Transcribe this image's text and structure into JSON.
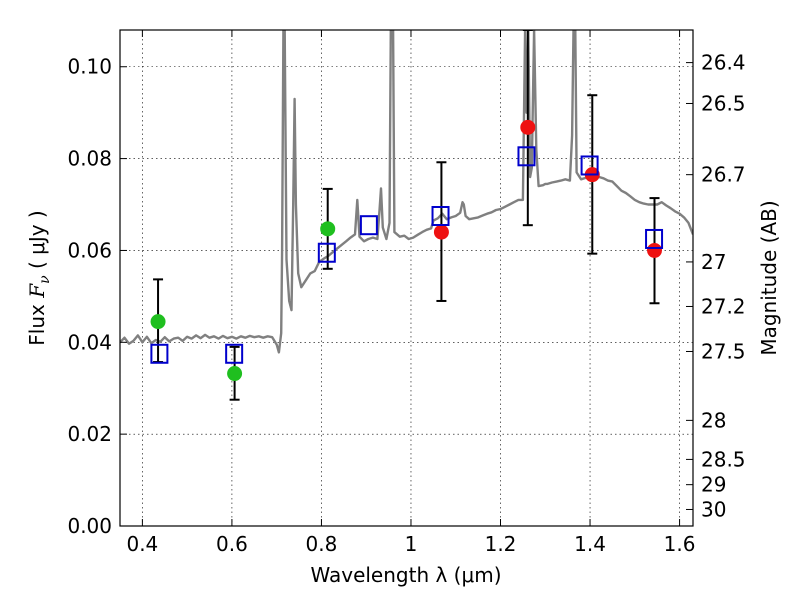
{
  "chart_data": {
    "type": "scatter",
    "xlabel": "Wavelength  λ (μm)",
    "ylabel_prefix": "Flux  ",
    "ylabel_symbol": "F",
    "ylabel_symbol_sub": "ν",
    "ylabel_suffix": "  ( μJy )",
    "y2label": "Magnitude (AB)",
    "xlim": [
      0.35,
      1.63
    ],
    "ylim": [
      0.0,
      0.108
    ],
    "grid": true,
    "x_ticks": [
      {
        "value": 0.4,
        "label": "0.4"
      },
      {
        "value": 0.6,
        "label": "0.6"
      },
      {
        "value": 0.8,
        "label": "0.8"
      },
      {
        "value": 1.0,
        "label": "1"
      },
      {
        "value": 1.2,
        "label": "1.2"
      },
      {
        "value": 1.4,
        "label": "1.4"
      },
      {
        "value": 1.6,
        "label": "1.6"
      }
    ],
    "y_ticks": [
      {
        "value": 0.0,
        "label": "0.00"
      },
      {
        "value": 0.02,
        "label": "0.02"
      },
      {
        "value": 0.04,
        "label": "0.04"
      },
      {
        "value": 0.06,
        "label": "0.06"
      },
      {
        "value": 0.08,
        "label": "0.08"
      },
      {
        "value": 0.1,
        "label": "0.10"
      }
    ],
    "mag_ticks": [
      {
        "flux": 0.1009,
        "label": "26.4"
      },
      {
        "flux": 0.092,
        "label": "26.5"
      },
      {
        "flux": 0.0765,
        "label": "26.7"
      },
      {
        "flux": 0.0575,
        "label": "27"
      },
      {
        "flux": 0.0478,
        "label": "27.2"
      },
      {
        "flux": 0.038,
        "label": "27.5"
      },
      {
        "flux": 0.023,
        "label": "28"
      },
      {
        "flux": 0.0145,
        "label": "28.5"
      },
      {
        "flux": 0.009,
        "label": "29"
      },
      {
        "flux": 0.0036,
        "label": "30"
      }
    ],
    "colors": {
      "spectrum": "#808080",
      "green_points": "#1fbf1f",
      "red_points": "#ee1111",
      "model_boxes": "#0000cc",
      "errorbars": "#000000"
    },
    "spectrum": [
      [
        0.35,
        0.04
      ],
      [
        0.36,
        0.041
      ],
      [
        0.37,
        0.0397
      ],
      [
        0.38,
        0.0403
      ],
      [
        0.39,
        0.0415
      ],
      [
        0.4,
        0.04
      ],
      [
        0.41,
        0.0412
      ],
      [
        0.42,
        0.0398
      ],
      [
        0.43,
        0.0405
      ],
      [
        0.44,
        0.0401
      ],
      [
        0.45,
        0.0411
      ],
      [
        0.46,
        0.0402
      ],
      [
        0.47,
        0.0408
      ],
      [
        0.48,
        0.041
      ],
      [
        0.49,
        0.0403
      ],
      [
        0.5,
        0.0412
      ],
      [
        0.51,
        0.0408
      ],
      [
        0.52,
        0.0415
      ],
      [
        0.53,
        0.0409
      ],
      [
        0.54,
        0.0416
      ],
      [
        0.55,
        0.041
      ],
      [
        0.56,
        0.0413
      ],
      [
        0.57,
        0.0408
      ],
      [
        0.58,
        0.0414
      ],
      [
        0.59,
        0.0409
      ],
      [
        0.6,
        0.0412
      ],
      [
        0.61,
        0.0408
      ],
      [
        0.62,
        0.0413
      ],
      [
        0.63,
        0.041
      ],
      [
        0.64,
        0.0414
      ],
      [
        0.65,
        0.0411
      ],
      [
        0.66,
        0.0413
      ],
      [
        0.67,
        0.041
      ],
      [
        0.68,
        0.0413
      ],
      [
        0.69,
        0.0411
      ],
      [
        0.7,
        0.0395
      ],
      [
        0.705,
        0.0378
      ],
      [
        0.71,
        0.042
      ],
      [
        0.712,
        0.06
      ],
      [
        0.715,
        0.108
      ],
      [
        0.718,
        0.108
      ],
      [
        0.722,
        0.058
      ],
      [
        0.728,
        0.049
      ],
      [
        0.733,
        0.047
      ],
      [
        0.737,
        0.07
      ],
      [
        0.74,
        0.093
      ],
      [
        0.743,
        0.07
      ],
      [
        0.748,
        0.055
      ],
      [
        0.755,
        0.052
      ],
      [
        0.765,
        0.0535
      ],
      [
        0.775,
        0.055
      ],
      [
        0.785,
        0.0555
      ],
      [
        0.795,
        0.0575
      ],
      [
        0.805,
        0.0582
      ],
      [
        0.815,
        0.0588
      ],
      [
        0.825,
        0.0596
      ],
      [
        0.835,
        0.0604
      ],
      [
        0.845,
        0.0612
      ],
      [
        0.855,
        0.062
      ],
      [
        0.865,
        0.0628
      ],
      [
        0.875,
        0.0635
      ],
      [
        0.88,
        0.071
      ],
      [
        0.885,
        0.063
      ],
      [
        0.895,
        0.062
      ],
      [
        0.905,
        0.0625
      ],
      [
        0.915,
        0.0628
      ],
      [
        0.925,
        0.0625
      ],
      [
        0.93,
        0.069
      ],
      [
        0.933,
        0.0735
      ],
      [
        0.937,
        0.065
      ],
      [
        0.945,
        0.0625
      ],
      [
        0.952,
        0.066
      ],
      [
        0.955,
        0.108
      ],
      [
        0.96,
        0.108
      ],
      [
        0.963,
        0.064
      ],
      [
        0.975,
        0.063
      ],
      [
        0.985,
        0.0632
      ],
      [
        0.995,
        0.0625
      ],
      [
        1.005,
        0.0628
      ],
      [
        1.015,
        0.0634
      ],
      [
        1.025,
        0.064
      ],
      [
        1.035,
        0.0645
      ],
      [
        1.045,
        0.0648
      ],
      [
        1.05,
        0.0665
      ],
      [
        1.06,
        0.067
      ],
      [
        1.07,
        0.068
      ],
      [
        1.08,
        0.0668
      ],
      [
        1.09,
        0.0672
      ],
      [
        1.1,
        0.0675
      ],
      [
        1.11,
        0.0682
      ],
      [
        1.115,
        0.0705
      ],
      [
        1.118,
        0.07
      ],
      [
        1.122,
        0.0675
      ],
      [
        1.13,
        0.0668
      ],
      [
        1.14,
        0.067
      ],
      [
        1.15,
        0.0672
      ],
      [
        1.16,
        0.0676
      ],
      [
        1.17,
        0.068
      ],
      [
        1.18,
        0.0683
      ],
      [
        1.19,
        0.0688
      ],
      [
        1.2,
        0.069
      ],
      [
        1.21,
        0.0695
      ],
      [
        1.22,
        0.07
      ],
      [
        1.23,
        0.0705
      ],
      [
        1.24,
        0.071
      ],
      [
        1.25,
        0.071
      ],
      [
        1.255,
        0.108
      ],
      [
        1.258,
        0.09
      ],
      [
        1.262,
        0.108
      ],
      [
        1.266,
        0.076
      ],
      [
        1.27,
        0.078
      ],
      [
        1.275,
        0.108
      ],
      [
        1.28,
        0.082
      ],
      [
        1.285,
        0.074
      ],
      [
        1.295,
        0.0742
      ],
      [
        1.3,
        0.0745
      ],
      [
        1.305,
        0.0745
      ],
      [
        1.315,
        0.0748
      ],
      [
        1.325,
        0.075
      ],
      [
        1.335,
        0.0752
      ],
      [
        1.345,
        0.0755
      ],
      [
        1.355,
        0.0752
      ],
      [
        1.36,
        0.085
      ],
      [
        1.363,
        0.108
      ],
      [
        1.367,
        0.108
      ],
      [
        1.37,
        0.077
      ],
      [
        1.38,
        0.0755
      ],
      [
        1.39,
        0.0758
      ],
      [
        1.4,
        0.076
      ],
      [
        1.41,
        0.0758
      ],
      [
        1.42,
        0.076
      ],
      [
        1.43,
        0.0757
      ],
      [
        1.44,
        0.0752
      ],
      [
        1.45,
        0.075
      ],
      [
        1.46,
        0.074
      ],
      [
        1.47,
        0.073
      ],
      [
        1.48,
        0.0725
      ],
      [
        1.49,
        0.0718
      ],
      [
        1.5,
        0.071
      ],
      [
        1.51,
        0.0705
      ],
      [
        1.52,
        0.0702
      ],
      [
        1.53,
        0.07
      ],
      [
        1.54,
        0.07
      ],
      [
        1.55,
        0.07
      ],
      [
        1.56,
        0.0705
      ],
      [
        1.57,
        0.0698
      ],
      [
        1.58,
        0.0692
      ],
      [
        1.59,
        0.0685
      ],
      [
        1.6,
        0.068
      ],
      [
        1.61,
        0.0672
      ],
      [
        1.62,
        0.066
      ],
      [
        1.63,
        0.0635
      ]
    ],
    "green_points": [
      {
        "x": 0.435,
        "y": 0.0445,
        "err_lo": 0.0357,
        "err_hi": 0.0537
      },
      {
        "x": 0.606,
        "y": 0.0332,
        "err_lo": 0.0275,
        "err_hi": 0.039
      },
      {
        "x": 0.814,
        "y": 0.0647,
        "err_lo": 0.056,
        "err_hi": 0.0734
      }
    ],
    "red_points": [
      {
        "x": 1.068,
        "y": 0.064,
        "err_lo": 0.049,
        "err_hi": 0.0792
      },
      {
        "x": 1.261,
        "y": 0.0868,
        "err_lo": 0.0655,
        "err_hi": 0.108
      },
      {
        "x": 1.405,
        "y": 0.0765,
        "err_lo": 0.0593,
        "err_hi": 0.0938
      },
      {
        "x": 1.544,
        "y": 0.06,
        "err_lo": 0.0485,
        "err_hi": 0.0714
      }
    ],
    "model_boxes": [
      {
        "x": 0.438,
        "y": 0.0375
      },
      {
        "x": 0.605,
        "y": 0.0375
      },
      {
        "x": 0.812,
        "y": 0.0595
      },
      {
        "x": 0.906,
        "y": 0.0655
      },
      {
        "x": 1.066,
        "y": 0.0675
      },
      {
        "x": 1.258,
        "y": 0.0805
      },
      {
        "x": 1.399,
        "y": 0.0785
      },
      {
        "x": 1.543,
        "y": 0.0625
      }
    ]
  }
}
